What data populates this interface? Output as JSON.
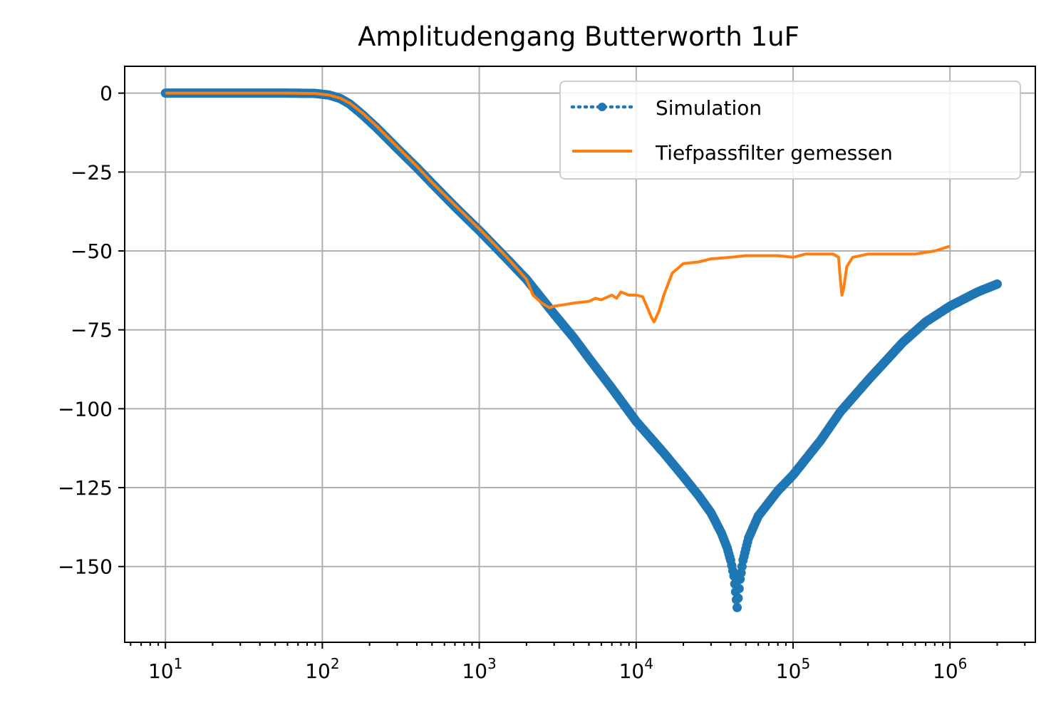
{
  "chart_data": {
    "type": "line",
    "title": "Amplitudengang Butterworth 1uF",
    "xlabel": "",
    "ylabel": "",
    "xscale": "log",
    "xlim": [
      5.5,
      3500000
    ],
    "ylim": [
      -174,
      8.5
    ],
    "grid": true,
    "legend_position": "top-right",
    "x_ticks": [
      {
        "value": 10,
        "base": "10",
        "exp": "1"
      },
      {
        "value": 100,
        "base": "10",
        "exp": "2"
      },
      {
        "value": 1000,
        "base": "10",
        "exp": "3"
      },
      {
        "value": 10000,
        "base": "10",
        "exp": "4"
      },
      {
        "value": 100000,
        "base": "10",
        "exp": "5"
      },
      {
        "value": 1000000,
        "base": "10",
        "exp": "6"
      }
    ],
    "y_ticks": [
      {
        "value": 0,
        "label": "0"
      },
      {
        "value": -25,
        "label": "−25"
      },
      {
        "value": -50,
        "label": "−50"
      },
      {
        "value": -75,
        "label": "−75"
      },
      {
        "value": -100,
        "label": "−100"
      },
      {
        "value": -125,
        "label": "−125"
      },
      {
        "value": -150,
        "label": "−150"
      }
    ],
    "series": [
      {
        "name": "Simulation",
        "color": "#1f77b4",
        "style": "dotted-marker",
        "x": [
          10,
          30,
          60,
          90,
          110,
          130,
          150,
          180,
          220,
          300,
          400,
          500,
          700,
          1000,
          1500,
          2000,
          3000,
          4000,
          5000,
          7000,
          10000,
          15000,
          20000,
          25000,
          30000,
          35000,
          38000,
          40000,
          42000,
          43000,
          44000,
          46000,
          48000,
          52000,
          60000,
          80000,
          100000,
          150000,
          200000,
          300000,
          500000,
          700000,
          1000000,
          1500000,
          2000000
        ],
        "y": [
          0,
          0,
          0,
          -0.1,
          -0.6,
          -1.7,
          -3.5,
          -6.8,
          -10.8,
          -17.5,
          -23.6,
          -28.6,
          -36,
          -43.5,
          -52.5,
          -59,
          -70,
          -77.5,
          -84,
          -93.5,
          -104,
          -114,
          -121.5,
          -127.5,
          -133,
          -139.5,
          -144,
          -148,
          -153,
          -158,
          -163,
          -154,
          -148,
          -141,
          -134,
          -126,
          -121,
          -110,
          -101,
          -91,
          -79,
          -72.5,
          -67.5,
          -63,
          -60.5
        ]
      },
      {
        "name": "Tiefpassfilter gemessen",
        "color": "#ff7f0e",
        "style": "line",
        "x": [
          10,
          30,
          60,
          90,
          110,
          130,
          150,
          180,
          220,
          300,
          400,
          500,
          700,
          1000,
          1500,
          2000,
          2200,
          2500,
          2800,
          3000,
          3500,
          4000,
          5000,
          5500,
          6000,
          7000,
          7500,
          8000,
          9000,
          10000,
          11000,
          11800,
          12500,
          13000,
          14000,
          15000,
          17000,
          20000,
          25000,
          30000,
          40000,
          50000,
          60000,
          80000,
          100000,
          120000,
          150000,
          180000,
          195000,
          200000,
          205000,
          210000,
          220000,
          240000,
          270000,
          300000,
          400000,
          500000,
          600000,
          800000,
          1000000
        ],
        "y": [
          0,
          0,
          0,
          -0.1,
          -0.6,
          -1.6,
          -3.2,
          -6.3,
          -10.3,
          -17,
          -23.2,
          -28.3,
          -35.5,
          -43,
          -52,
          -59,
          -64,
          -66.5,
          -68,
          -67.5,
          -67,
          -66.5,
          -66,
          -65,
          -65.5,
          -64,
          -65,
          -63,
          -64,
          -64,
          -64.5,
          -68,
          -71,
          -72.5,
          -69,
          -64,
          -57,
          -54,
          -53.5,
          -52.5,
          -52,
          -51.5,
          -51.5,
          -51.5,
          -52,
          -51,
          -51,
          -51,
          -52,
          -59,
          -64,
          -62,
          -55,
          -52,
          -51.5,
          -51,
          -51,
          -51,
          -51,
          -50,
          -48.5
        ]
      }
    ]
  }
}
